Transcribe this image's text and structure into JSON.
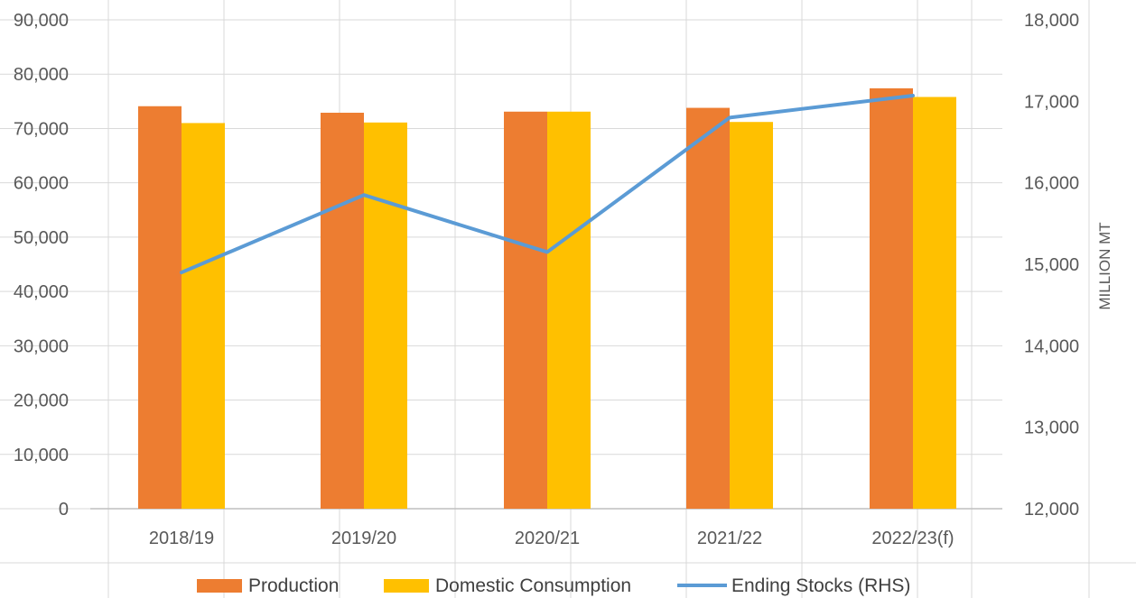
{
  "chart_data": {
    "type": "bar",
    "categories": [
      "2018/19",
      "2019/20",
      "2020/21",
      "2021/22",
      "2022/23(f)"
    ],
    "series": [
      {
        "name": "Production",
        "kind": "bar",
        "axis": "left",
        "color": "#ED7D31",
        "values": [
          74100,
          72900,
          73100,
          73800,
          77400
        ]
      },
      {
        "name": "Domestic Consumption",
        "kind": "bar",
        "axis": "left",
        "color": "#FFC000",
        "values": [
          71000,
          71100,
          73100,
          71200,
          75800
        ]
      },
      {
        "name": "Ending Stocks (RHS)",
        "kind": "line",
        "axis": "right",
        "color": "#5B9BD5",
        "values": [
          14900,
          15850,
          15150,
          16800,
          17070
        ]
      }
    ],
    "y_left": {
      "range": [
        0,
        90000
      ],
      "ticks": [
        "0",
        "10,000",
        "20,000",
        "30,000",
        "40,000",
        "50,000",
        "60,000",
        "70,000",
        "80,000",
        "90,000"
      ]
    },
    "y_right": {
      "range": [
        12000,
        18000
      ],
      "label": "MILLION MT",
      "ticks": [
        "12,000",
        "13,000",
        "14,000",
        "15,000",
        "16,000",
        "17,000",
        "18,000"
      ]
    },
    "grid": true,
    "legend_position": "bottom"
  }
}
